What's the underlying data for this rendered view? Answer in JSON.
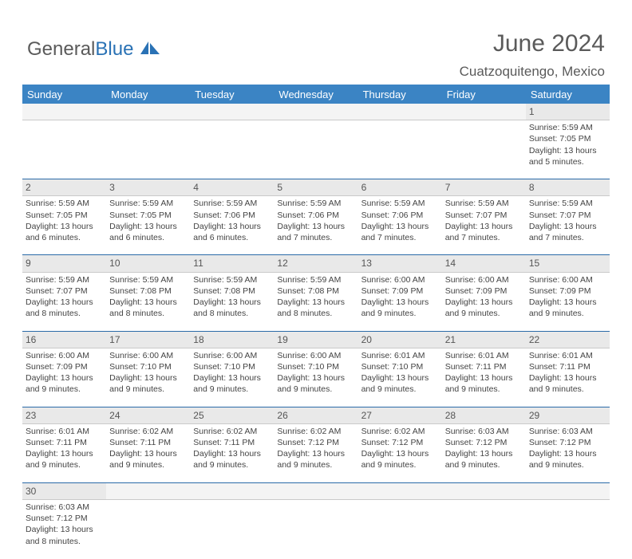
{
  "brand": {
    "part1": "General",
    "part2": "Blue"
  },
  "title": "June 2024",
  "location": "Cuatzoquitengo, Mexico",
  "colors": {
    "header_bg": "#3b84c4",
    "header_text": "#ffffff",
    "daynum_bg": "#e9e9e9",
    "border": "#2a6aa8",
    "text": "#444444",
    "title_color": "#5a5a5a"
  },
  "day_headers": [
    "Sunday",
    "Monday",
    "Tuesday",
    "Wednesday",
    "Thursday",
    "Friday",
    "Saturday"
  ],
  "weeks": [
    [
      null,
      null,
      null,
      null,
      null,
      null,
      {
        "n": "1",
        "sr": "5:59 AM",
        "ss": "7:05 PM",
        "dl": "13 hours and 5 minutes."
      }
    ],
    [
      {
        "n": "2",
        "sr": "5:59 AM",
        "ss": "7:05 PM",
        "dl": "13 hours and 6 minutes."
      },
      {
        "n": "3",
        "sr": "5:59 AM",
        "ss": "7:05 PM",
        "dl": "13 hours and 6 minutes."
      },
      {
        "n": "4",
        "sr": "5:59 AM",
        "ss": "7:06 PM",
        "dl": "13 hours and 6 minutes."
      },
      {
        "n": "5",
        "sr": "5:59 AM",
        "ss": "7:06 PM",
        "dl": "13 hours and 7 minutes."
      },
      {
        "n": "6",
        "sr": "5:59 AM",
        "ss": "7:06 PM",
        "dl": "13 hours and 7 minutes."
      },
      {
        "n": "7",
        "sr": "5:59 AM",
        "ss": "7:07 PM",
        "dl": "13 hours and 7 minutes."
      },
      {
        "n": "8",
        "sr": "5:59 AM",
        "ss": "7:07 PM",
        "dl": "13 hours and 7 minutes."
      }
    ],
    [
      {
        "n": "9",
        "sr": "5:59 AM",
        "ss": "7:07 PM",
        "dl": "13 hours and 8 minutes."
      },
      {
        "n": "10",
        "sr": "5:59 AM",
        "ss": "7:08 PM",
        "dl": "13 hours and 8 minutes."
      },
      {
        "n": "11",
        "sr": "5:59 AM",
        "ss": "7:08 PM",
        "dl": "13 hours and 8 minutes."
      },
      {
        "n": "12",
        "sr": "5:59 AM",
        "ss": "7:08 PM",
        "dl": "13 hours and 8 minutes."
      },
      {
        "n": "13",
        "sr": "6:00 AM",
        "ss": "7:09 PM",
        "dl": "13 hours and 9 minutes."
      },
      {
        "n": "14",
        "sr": "6:00 AM",
        "ss": "7:09 PM",
        "dl": "13 hours and 9 minutes."
      },
      {
        "n": "15",
        "sr": "6:00 AM",
        "ss": "7:09 PM",
        "dl": "13 hours and 9 minutes."
      }
    ],
    [
      {
        "n": "16",
        "sr": "6:00 AM",
        "ss": "7:09 PM",
        "dl": "13 hours and 9 minutes."
      },
      {
        "n": "17",
        "sr": "6:00 AM",
        "ss": "7:10 PM",
        "dl": "13 hours and 9 minutes."
      },
      {
        "n": "18",
        "sr": "6:00 AM",
        "ss": "7:10 PM",
        "dl": "13 hours and 9 minutes."
      },
      {
        "n": "19",
        "sr": "6:00 AM",
        "ss": "7:10 PM",
        "dl": "13 hours and 9 minutes."
      },
      {
        "n": "20",
        "sr": "6:01 AM",
        "ss": "7:10 PM",
        "dl": "13 hours and 9 minutes."
      },
      {
        "n": "21",
        "sr": "6:01 AM",
        "ss": "7:11 PM",
        "dl": "13 hours and 9 minutes."
      },
      {
        "n": "22",
        "sr": "6:01 AM",
        "ss": "7:11 PM",
        "dl": "13 hours and 9 minutes."
      }
    ],
    [
      {
        "n": "23",
        "sr": "6:01 AM",
        "ss": "7:11 PM",
        "dl": "13 hours and 9 minutes."
      },
      {
        "n": "24",
        "sr": "6:02 AM",
        "ss": "7:11 PM",
        "dl": "13 hours and 9 minutes."
      },
      {
        "n": "25",
        "sr": "6:02 AM",
        "ss": "7:11 PM",
        "dl": "13 hours and 9 minutes."
      },
      {
        "n": "26",
        "sr": "6:02 AM",
        "ss": "7:12 PM",
        "dl": "13 hours and 9 minutes."
      },
      {
        "n": "27",
        "sr": "6:02 AM",
        "ss": "7:12 PM",
        "dl": "13 hours and 9 minutes."
      },
      {
        "n": "28",
        "sr": "6:03 AM",
        "ss": "7:12 PM",
        "dl": "13 hours and 9 minutes."
      },
      {
        "n": "29",
        "sr": "6:03 AM",
        "ss": "7:12 PM",
        "dl": "13 hours and 9 minutes."
      }
    ],
    [
      {
        "n": "30",
        "sr": "6:03 AM",
        "ss": "7:12 PM",
        "dl": "13 hours and 8 minutes."
      },
      null,
      null,
      null,
      null,
      null,
      null
    ]
  ],
  "labels": {
    "sunrise": "Sunrise: ",
    "sunset": "Sunset: ",
    "daylight": "Daylight: "
  }
}
